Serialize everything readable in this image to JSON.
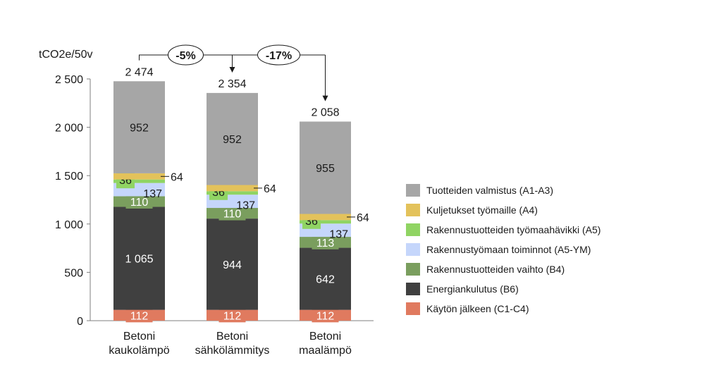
{
  "chart_data": {
    "type": "bar",
    "stacked": true,
    "ylabel": "tCO2e/50v",
    "ylim": [
      0,
      2500
    ],
    "yticks": [
      0,
      500,
      1000,
      1500,
      2000,
      2500
    ],
    "ytick_labels": [
      "0",
      "500",
      "1 000",
      "1 500",
      "2 000",
      "2 500"
    ],
    "grid": false,
    "legend_position": "right",
    "categories": [
      [
        "Betoni",
        "kaukolämpö"
      ],
      [
        "Betoni",
        "sähkölämmitys"
      ],
      [
        "Betoni",
        "maalämpö"
      ]
    ],
    "totals": [
      2474,
      2354,
      2058
    ],
    "total_labels": [
      "2 474",
      "2 354",
      "2 058"
    ],
    "series": [
      {
        "name": "Käytön jälkeen (C1-C4)",
        "color": "#e07a5f",
        "values": [
          112,
          112,
          112
        ],
        "labels": [
          "112",
          "112",
          "112"
        ],
        "label_color": "#ffffff",
        "label_style": "inside-badge"
      },
      {
        "name": "Energiankulutus (B6)",
        "color": "#404040",
        "values": [
          1065,
          944,
          642
        ],
        "labels": [
          "1 065",
          "944",
          "642"
        ],
        "label_color": "#ffffff",
        "label_style": "inside"
      },
      {
        "name": "Rakennustuotteiden vaihto (B4)",
        "color": "#7a9e5e",
        "values": [
          110,
          110,
          113
        ],
        "labels": [
          "110",
          "110",
          "113"
        ],
        "label_color": "#ffffff",
        "label_style": "inside-badge"
      },
      {
        "name": "Rakennustyömaan toiminnot (A5-YM)",
        "color": "#c5d6fb",
        "values": [
          137,
          137,
          137
        ],
        "labels": [
          "137",
          "137",
          "137"
        ],
        "label_color": "#1a1a1a",
        "label_style": "inside-right"
      },
      {
        "name": "Rakennustuotteiden työmaahävikki (A5)",
        "color": "#90d463",
        "values": [
          36,
          36,
          36
        ],
        "labels": [
          "36",
          "36",
          "36"
        ],
        "label_color": "#1a1a1a",
        "label_style": "badge-left"
      },
      {
        "name": "Kuljetukset työmaille (A4)",
        "color": "#e3c25b",
        "values": [
          64,
          64,
          64
        ],
        "labels": [
          "64",
          "64",
          "64"
        ],
        "label_color": "#1a1a1a",
        "label_style": "outside-right"
      },
      {
        "name": "Tuotteiden valmistus (A1-A3)",
        "color": "#a6a6a6",
        "values": [
          952,
          952,
          955
        ],
        "labels": [
          "952",
          "952",
          "955"
        ],
        "label_color": "#1a1a1a",
        "label_style": "inside"
      }
    ],
    "annotations": [
      {
        "text": "-5%",
        "from": 0,
        "to": 1
      },
      {
        "text": "-17%",
        "from": 0,
        "to": 2
      }
    ]
  }
}
